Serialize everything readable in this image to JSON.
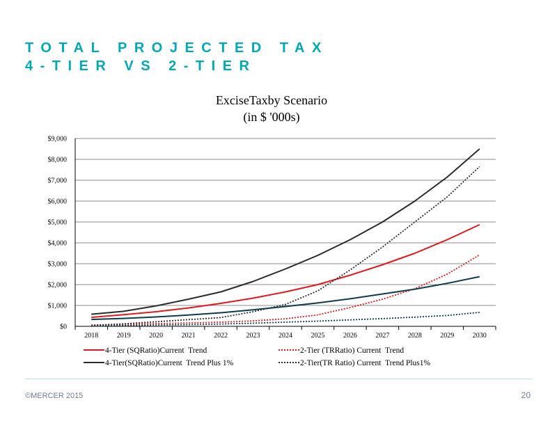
{
  "slide": {
    "title_line1": "TOTAL PROJECTED TAX",
    "title_line2": "4-TIER VS 2-TIER"
  },
  "chart_data": {
    "type": "line",
    "title": "ExciseTaxby Scenario",
    "subtitle": "(in $ '000s)",
    "xlabel": "",
    "ylabel": "",
    "x": [
      "2018",
      "2019",
      "2020",
      "2021",
      "2022",
      "2023",
      "2024",
      "2025",
      "2026",
      "2027",
      "2028",
      "2029",
      "2030"
    ],
    "ylim": [
      0,
      9000
    ],
    "yticks": [
      0,
      1000,
      2000,
      3000,
      4000,
      5000,
      6000,
      7000,
      8000,
      9000
    ],
    "ytick_labels": [
      "$0",
      "$1,000",
      "$2,000",
      "$3,000",
      "$4,000",
      "$5,000",
      "$6,000",
      "$7,000",
      "$8,000",
      "$9,000"
    ],
    "grid": true,
    "legend_position": "bottom",
    "series": [
      {
        "name": "4-Tier (SQRatio)Current  Trend",
        "color": "#e0191e",
        "dash": "solid",
        "values": [
          430,
          560,
          700,
          880,
          1100,
          1350,
          1650,
          2000,
          2450,
          2950,
          3500,
          4150,
          4870
        ]
      },
      {
        "name": "2-Tier (TRRatio) Current  Trend",
        "color": "#e0191e",
        "dash": "dotted",
        "values": [
          60,
          100,
          130,
          160,
          200,
          260,
          360,
          550,
          900,
          1300,
          1800,
          2500,
          3420
        ]
      },
      {
        "name": "4-Tier(SQRatio)Current  Trend Plus 1%",
        "color": "#2b2b2b",
        "dash": "solid",
        "values": [
          580,
          720,
          980,
          1300,
          1650,
          2150,
          2750,
          3400,
          4150,
          5000,
          6000,
          7150,
          8500
        ]
      },
      {
        "name": "2-Tier(TR Ratio) Current  Trend Plus1%",
        "color": "#2b2b2b",
        "dash": "dotted",
        "values": [
          40,
          120,
          220,
          320,
          420,
          700,
          1050,
          1700,
          2700,
          3800,
          5000,
          6200,
          7650
        ]
      },
      {
        "name": "",
        "color": "#0e3a4a",
        "dash": "solid",
        "values": [
          330,
          380,
          450,
          540,
          650,
          790,
          950,
          1120,
          1320,
          1550,
          1780,
          2060,
          2380
        ]
      },
      {
        "name": "",
        "color": "#0e3a4a",
        "dash": "dotted",
        "values": [
          20,
          40,
          60,
          80,
          110,
          150,
          200,
          250,
          310,
          370,
          440,
          520,
          670
        ]
      }
    ]
  },
  "footer": {
    "copyright": "©MERCER  2015",
    "page_number": "20"
  }
}
